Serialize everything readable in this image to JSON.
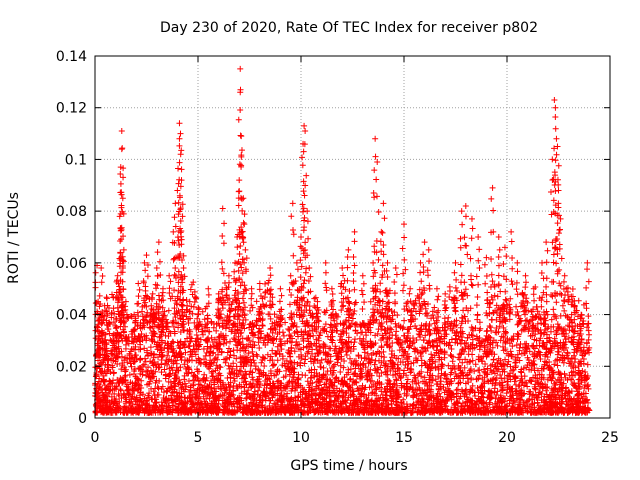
{
  "chart_data": {
    "type": "scatter",
    "title": "Day 230 of 2020, Rate Of TEC Index for receiver p802",
    "xlabel": "GPS time / hours",
    "ylabel": "ROTI / TECUs",
    "xlim": [
      0,
      25
    ],
    "ylim": [
      0,
      0.14
    ],
    "x_ticks": [
      "0",
      "5",
      "10",
      "15",
      "20",
      "25"
    ],
    "y_ticks": [
      "0",
      "0.02",
      "0.04",
      "0.06",
      "0.08",
      "0.1",
      "0.12",
      "0.14"
    ],
    "grid": true,
    "marker": "+",
    "color": "#ff0000",
    "series": [
      {
        "points": [
          [
            0.1,
            0.059
          ],
          [
            0.15,
            0.045
          ],
          [
            0.2,
            0.032
          ],
          [
            0.3,
            0.058
          ],
          [
            0.35,
            0.041
          ],
          [
            0.5,
            0.03
          ],
          [
            1.0,
            0.032
          ],
          [
            1.1,
            0.055
          ],
          [
            1.2,
            0.078
          ],
          [
            1.25,
            0.097
          ],
          [
            1.3,
            0.104
          ],
          [
            1.3,
            0.111
          ],
          [
            1.35,
            0.085
          ],
          [
            1.4,
            0.065
          ],
          [
            1.5,
            0.045
          ],
          [
            1.9,
            0.04
          ],
          [
            2.1,
            0.052
          ],
          [
            2.4,
            0.06
          ],
          [
            2.5,
            0.063
          ],
          [
            2.8,
            0.048
          ],
          [
            3.0,
            0.058
          ],
          [
            3.1,
            0.068
          ],
          [
            3.3,
            0.05
          ],
          [
            3.6,
            0.055
          ],
          [
            3.8,
            0.072
          ],
          [
            3.9,
            0.083
          ],
          [
            4.0,
            0.088
          ],
          [
            4.1,
            0.108
          ],
          [
            4.1,
            0.114
          ],
          [
            4.15,
            0.11
          ],
          [
            4.2,
            0.092
          ],
          [
            4.25,
            0.078
          ],
          [
            4.3,
            0.058
          ],
          [
            4.6,
            0.045
          ],
          [
            5.0,
            0.04
          ],
          [
            5.5,
            0.05
          ],
          [
            6.0,
            0.048
          ],
          [
            6.2,
            0.081
          ],
          [
            6.5,
            0.055
          ],
          [
            6.8,
            0.06
          ],
          [
            6.9,
            0.07
          ],
          [
            7.0,
            0.092
          ],
          [
            7.05,
            0.135
          ],
          [
            7.05,
            0.126
          ],
          [
            7.1,
            0.109
          ],
          [
            7.2,
            0.085
          ],
          [
            7.25,
            0.075
          ],
          [
            7.3,
            0.065
          ],
          [
            7.6,
            0.05
          ],
          [
            8.0,
            0.052
          ],
          [
            8.5,
            0.058
          ],
          [
            9.0,
            0.05
          ],
          [
            9.5,
            0.055
          ],
          [
            9.6,
            0.083
          ],
          [
            9.8,
            0.06
          ],
          [
            10.0,
            0.07
          ],
          [
            10.1,
            0.106
          ],
          [
            10.15,
            0.113
          ],
          [
            10.2,
            0.111
          ],
          [
            10.3,
            0.08
          ],
          [
            10.4,
            0.058
          ],
          [
            10.8,
            0.045
          ],
          [
            11.2,
            0.06
          ],
          [
            11.5,
            0.05
          ],
          [
            12.0,
            0.058
          ],
          [
            12.3,
            0.065
          ],
          [
            12.6,
            0.072
          ],
          [
            13.0,
            0.055
          ],
          [
            13.5,
            0.06
          ],
          [
            13.6,
            0.108
          ],
          [
            13.7,
            0.099
          ],
          [
            13.9,
            0.072
          ],
          [
            14.0,
            0.083
          ],
          [
            14.2,
            0.06
          ],
          [
            14.6,
            0.058
          ],
          [
            15.0,
            0.075
          ],
          [
            15.3,
            0.05
          ],
          [
            15.8,
            0.06
          ],
          [
            16.0,
            0.068
          ],
          [
            16.2,
            0.065
          ],
          [
            16.6,
            0.05
          ],
          [
            17.0,
            0.048
          ],
          [
            17.5,
            0.06
          ],
          [
            17.8,
            0.08
          ],
          [
            18.0,
            0.082
          ],
          [
            18.3,
            0.077
          ],
          [
            18.6,
            0.07
          ],
          [
            19.0,
            0.062
          ],
          [
            19.3,
            0.089
          ],
          [
            19.6,
            0.07
          ],
          [
            19.9,
            0.066
          ],
          [
            20.2,
            0.072
          ],
          [
            20.5,
            0.06
          ],
          [
            20.9,
            0.055
          ],
          [
            21.3,
            0.05
          ],
          [
            21.7,
            0.06
          ],
          [
            21.9,
            0.068
          ],
          [
            22.2,
            0.1
          ],
          [
            22.3,
            0.123
          ],
          [
            22.35,
            0.12
          ],
          [
            22.4,
            0.108
          ],
          [
            22.45,
            0.105
          ],
          [
            22.5,
            0.088
          ],
          [
            22.6,
            0.077
          ],
          [
            22.8,
            0.055
          ],
          [
            23.2,
            0.047
          ],
          [
            23.6,
            0.04
          ],
          [
            23.9,
            0.06
          ]
        ]
      }
    ]
  }
}
